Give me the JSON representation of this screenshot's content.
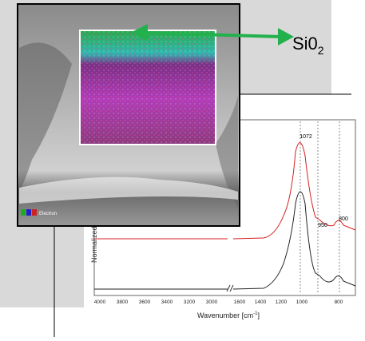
{
  "annotation": {
    "label": "Si0",
    "subscript": "2"
  },
  "sem": {
    "legend_label": "Electron"
  },
  "spectrum": {
    "y_label": "Normalized ab",
    "x_label": {
      "main": "Wavenumber [cm",
      "sup": "-1",
      "end": "]"
    },
    "xticks": [
      "4000",
      "3800",
      "3600",
      "3400",
      "3200",
      "3000",
      "1600",
      "1400",
      "1200",
      "1000",
      "800"
    ],
    "peaks": [
      "1072",
      "950",
      "800"
    ]
  }
}
